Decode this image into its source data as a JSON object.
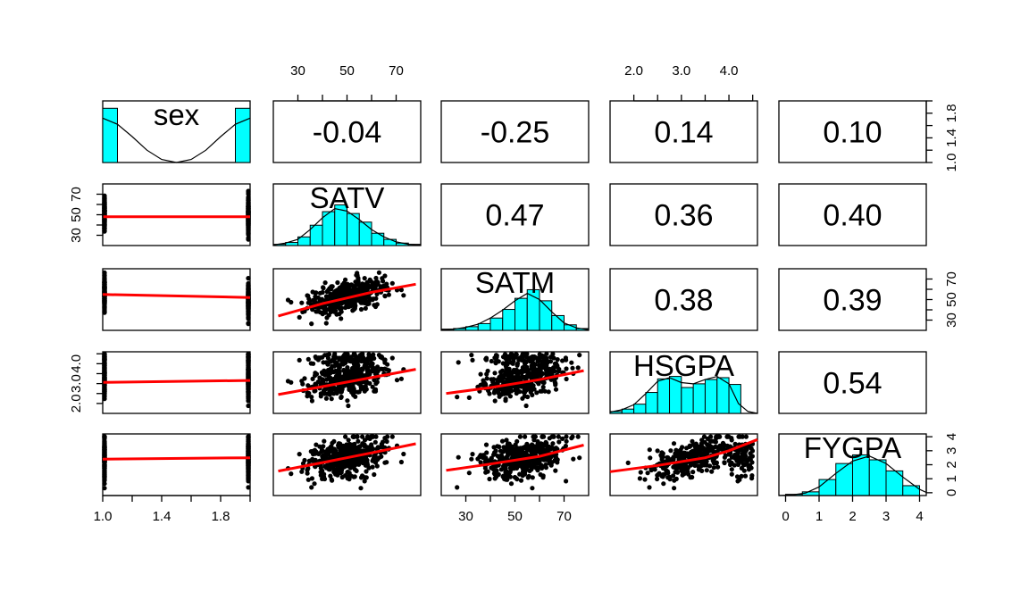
{
  "chart_data": {
    "type": "scatter",
    "subtype": "pairs-panels",
    "title": "",
    "variables": [
      {
        "name": "sex",
        "range": [
          1.0,
          2.0
        ],
        "ticks": [
          1.0,
          1.2,
          1.4,
          1.6,
          1.8,
          2.0
        ],
        "tick_labels": [
          "1.0",
          "1.4",
          "1.8"
        ]
      },
      {
        "name": "SATV",
        "range": [
          20,
          80
        ],
        "ticks": [
          30,
          40,
          50,
          60,
          70
        ],
        "tick_labels": [
          "30",
          "50",
          "70"
        ]
      },
      {
        "name": "SATM",
        "range": [
          20,
          80
        ],
        "ticks": [
          30,
          40,
          50,
          60,
          70
        ],
        "tick_labels": [
          "30",
          "50",
          "70"
        ]
      },
      {
        "name": "HSGPA",
        "range": [
          1.5,
          4.6
        ],
        "ticks": [
          2.0,
          2.5,
          3.0,
          3.5,
          4.0,
          4.5
        ],
        "tick_labels": [
          "2.0",
          "3.0",
          "4.0"
        ]
      },
      {
        "name": "FYGPA",
        "range": [
          -0.2,
          4.2
        ],
        "ticks": [
          0,
          1,
          2,
          3,
          4
        ],
        "tick_labels": [
          "0",
          "1",
          "2",
          "3",
          "4"
        ]
      }
    ],
    "correlations": [
      {
        "row": 0,
        "col": 1,
        "label": "-0.04"
      },
      {
        "row": 0,
        "col": 2,
        "label": "-0.25"
      },
      {
        "row": 0,
        "col": 3,
        "label": "0.14"
      },
      {
        "row": 0,
        "col": 4,
        "label": "0.10"
      },
      {
        "row": 1,
        "col": 2,
        "label": "0.47"
      },
      {
        "row": 1,
        "col": 3,
        "label": "0.36"
      },
      {
        "row": 1,
        "col": 4,
        "label": "0.40"
      },
      {
        "row": 2,
        "col": 3,
        "label": "0.38"
      },
      {
        "row": 2,
        "col": 4,
        "label": "0.39"
      },
      {
        "row": 3,
        "col": 4,
        "label": "0.54"
      }
    ],
    "histograms": [
      {
        "var": 0,
        "bins": [
          1.0,
          1.1,
          1.9,
          2.0
        ],
        "counts": [
          0.88,
          0,
          0.88
        ],
        "density": [
          [
            1.0,
            0.72
          ],
          [
            1.1,
            0.62
          ],
          [
            1.2,
            0.42
          ],
          [
            1.3,
            0.2
          ],
          [
            1.4,
            0.05
          ],
          [
            1.5,
            0.0
          ],
          [
            1.6,
            0.05
          ],
          [
            1.7,
            0.2
          ],
          [
            1.8,
            0.42
          ],
          [
            1.9,
            0.62
          ],
          [
            2.0,
            0.72
          ]
        ]
      },
      {
        "var": 1,
        "bins": [
          20,
          25,
          30,
          35,
          40,
          45,
          50,
          55,
          60,
          65,
          70,
          75,
          80
        ],
        "counts": [
          0.02,
          0.05,
          0.14,
          0.33,
          0.55,
          0.66,
          0.52,
          0.38,
          0.2,
          0.1,
          0.04,
          0.02
        ],
        "density": [
          [
            20,
            0.01
          ],
          [
            25,
            0.04
          ],
          [
            30,
            0.1
          ],
          [
            35,
            0.26
          ],
          [
            40,
            0.45
          ],
          [
            45,
            0.6
          ],
          [
            50,
            0.56
          ],
          [
            55,
            0.42
          ],
          [
            60,
            0.26
          ],
          [
            65,
            0.14
          ],
          [
            70,
            0.06
          ],
          [
            75,
            0.02
          ],
          [
            80,
            0.01
          ]
        ]
      },
      {
        "var": 2,
        "bins": [
          20,
          25,
          30,
          35,
          40,
          45,
          50,
          55,
          60,
          65,
          70,
          75,
          80
        ],
        "counts": [
          0.02,
          0.03,
          0.06,
          0.11,
          0.2,
          0.34,
          0.52,
          0.66,
          0.48,
          0.24,
          0.09,
          0.03
        ],
        "density": [
          [
            20,
            0.01
          ],
          [
            25,
            0.02
          ],
          [
            30,
            0.05
          ],
          [
            35,
            0.1
          ],
          [
            40,
            0.2
          ],
          [
            45,
            0.33
          ],
          [
            50,
            0.48
          ],
          [
            55,
            0.6
          ],
          [
            60,
            0.5
          ],
          [
            65,
            0.3
          ],
          [
            70,
            0.12
          ],
          [
            75,
            0.04
          ],
          [
            80,
            0.01
          ]
        ]
      },
      {
        "var": 3,
        "bins": [
          1.5,
          1.75,
          2.0,
          2.25,
          2.5,
          2.75,
          3.0,
          3.25,
          3.5,
          3.75,
          4.0,
          4.25
        ],
        "counts": [
          0.03,
          0.07,
          0.15,
          0.34,
          0.56,
          0.6,
          0.42,
          0.48,
          0.55,
          0.58,
          0.47
        ],
        "density": [
          [
            1.5,
            0.02
          ],
          [
            1.75,
            0.06
          ],
          [
            2.0,
            0.14
          ],
          [
            2.25,
            0.32
          ],
          [
            2.5,
            0.52
          ],
          [
            2.75,
            0.58
          ],
          [
            3.0,
            0.5
          ],
          [
            3.25,
            0.48
          ],
          [
            3.5,
            0.55
          ],
          [
            3.75,
            0.6
          ],
          [
            4.0,
            0.48
          ],
          [
            4.2,
            0.16
          ],
          [
            4.4,
            0.03
          ],
          [
            4.6,
            0.0
          ]
        ]
      },
      {
        "var": 4,
        "bins": [
          0,
          0.5,
          1.0,
          1.5,
          2.0,
          2.5,
          3.0,
          3.5,
          4.0
        ],
        "counts": [
          0.02,
          0.06,
          0.26,
          0.52,
          0.66,
          0.58,
          0.4,
          0.16
        ],
        "density": [
          [
            -0.2,
            0.0
          ],
          [
            0.2,
            0.01
          ],
          [
            0.6,
            0.04
          ],
          [
            1.0,
            0.14
          ],
          [
            1.5,
            0.36
          ],
          [
            2.0,
            0.56
          ],
          [
            2.5,
            0.64
          ],
          [
            3.0,
            0.52
          ],
          [
            3.5,
            0.3
          ],
          [
            4.0,
            0.1
          ],
          [
            4.2,
            0.05
          ]
        ]
      }
    ],
    "fit_lines": [
      {
        "row": 1,
        "col": 0,
        "points": [
          [
            1.0,
            48
          ],
          [
            2.0,
            48
          ]
        ]
      },
      {
        "row": 2,
        "col": 0,
        "points": [
          [
            1.0,
            55
          ],
          [
            2.0,
            52
          ]
        ]
      },
      {
        "row": 3,
        "col": 0,
        "points": [
          [
            1.0,
            3.06
          ],
          [
            2.0,
            3.16
          ]
        ]
      },
      {
        "row": 4,
        "col": 0,
        "points": [
          [
            1.0,
            2.4
          ],
          [
            2.0,
            2.5
          ]
        ]
      },
      {
        "row": 2,
        "col": 1,
        "points": [
          [
            22,
            34
          ],
          [
            40,
            46
          ],
          [
            60,
            57
          ],
          [
            78,
            65
          ]
        ]
      },
      {
        "row": 3,
        "col": 1,
        "points": [
          [
            22,
            2.45
          ],
          [
            40,
            2.85
          ],
          [
            60,
            3.3
          ],
          [
            78,
            3.72
          ]
        ]
      },
      {
        "row": 4,
        "col": 1,
        "points": [
          [
            22,
            1.55
          ],
          [
            40,
            2.15
          ],
          [
            60,
            2.85
          ],
          [
            78,
            3.5
          ]
        ]
      },
      {
        "row": 3,
        "col": 2,
        "points": [
          [
            22,
            2.5
          ],
          [
            40,
            2.8
          ],
          [
            60,
            3.2
          ],
          [
            78,
            3.65
          ]
        ]
      },
      {
        "row": 4,
        "col": 2,
        "points": [
          [
            22,
            1.6
          ],
          [
            40,
            2.05
          ],
          [
            60,
            2.6
          ],
          [
            78,
            3.4
          ]
        ]
      },
      {
        "row": 4,
        "col": 3,
        "points": [
          [
            1.5,
            1.5
          ],
          [
            2.5,
            1.95
          ],
          [
            3.5,
            2.5
          ],
          [
            4.0,
            3.0
          ],
          [
            4.6,
            3.8
          ]
        ]
      }
    ],
    "scatter_style": {
      "point_color": "#000000",
      "fit_color": "#ff0000",
      "hist_fill": "#00ffff"
    }
  }
}
